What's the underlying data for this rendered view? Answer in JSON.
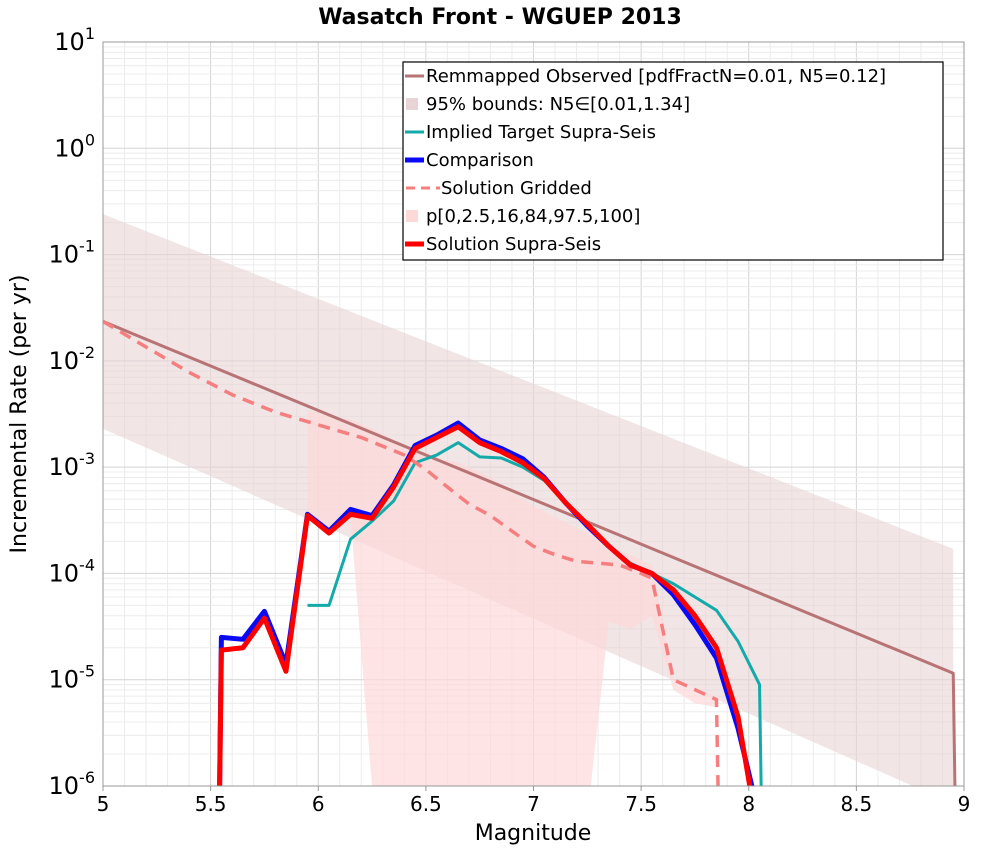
{
  "chart_data": {
    "type": "line",
    "title": "Wasatch Front - WGUEP 2013",
    "xlabel": "Magnitude",
    "ylabel": "Incremental Rate (per yr)",
    "xlim": [
      5,
      9
    ],
    "ylim": [
      1e-06,
      10
    ],
    "y_scale": "log",
    "grid": true,
    "legend_position": "top-right",
    "x_ticks": [
      "5",
      "5.5",
      "6",
      "6.5",
      "7",
      "7.5",
      "8",
      "8.5",
      "9"
    ],
    "y_ticks": [
      {
        "base": "10",
        "exp": "-6"
      },
      {
        "base": "10",
        "exp": "-5"
      },
      {
        "base": "10",
        "exp": "-4"
      },
      {
        "base": "10",
        "exp": "-3"
      },
      {
        "base": "10",
        "exp": "-2"
      },
      {
        "base": "10",
        "exp": "-1"
      },
      {
        "base": "10",
        "exp": "0"
      },
      {
        "base": "10",
        "exp": "1"
      }
    ],
    "colors": {
      "observed": "#b87474",
      "observed_band": "#e8d4d6",
      "target": "#13aaaa",
      "comparison": "#0a0af5",
      "gridded": "#f57f7f",
      "percentile_band": "#fdd8d8",
      "supra": "#ff0000"
    },
    "series": [
      {
        "name": "Remmapped Observed [pdfFractN=0.01, N5=0.12]",
        "style": "line",
        "x": [
          5.0,
          8.95,
          8.96
        ],
        "y": [
          0.0235,
          1.15e-05,
          5e-07
        ]
      },
      {
        "name": "95% bounds: N5∈[0.01,1.34]",
        "style": "band",
        "x": [
          5.0,
          8.95
        ],
        "lower": [
          0.0023,
          6.8e-07
        ],
        "upper": [
          0.24,
          0.00017
        ]
      },
      {
        "name": "Implied Target Supra-Seis",
        "style": "line",
        "x": [
          5.95,
          6.05,
          6.15,
          6.25,
          6.35,
          6.45,
          6.55,
          6.65,
          6.75,
          6.85,
          6.95,
          7.05,
          7.15,
          7.25,
          7.35,
          7.45,
          7.55,
          7.65,
          7.75,
          7.85,
          7.95,
          8.05,
          8.06
        ],
        "y": [
          5e-05,
          5e-05,
          0.00021,
          0.00031,
          0.00048,
          0.0011,
          0.0013,
          0.0017,
          0.00125,
          0.00122,
          0.001,
          0.00075,
          0.00045,
          0.00028,
          0.00018,
          0.000125,
          0.0001,
          8e-05,
          6e-05,
          4.5e-05,
          2.3e-05,
          9e-06,
          5e-07
        ]
      },
      {
        "name": "Comparison",
        "style": "line",
        "x": [
          5.54,
          5.55,
          5.65,
          5.75,
          5.85,
          5.95,
          6.05,
          6.15,
          6.25,
          6.35,
          6.45,
          6.55,
          6.65,
          6.75,
          6.85,
          6.95,
          7.05,
          7.15,
          7.25,
          7.35,
          7.45,
          7.55,
          7.65,
          7.75,
          7.85,
          7.95,
          8.05
        ],
        "y": [
          5e-07,
          2.5e-05,
          2.4e-05,
          4.4e-05,
          1.4e-05,
          0.00036,
          0.00025,
          0.0004,
          0.00035,
          0.00068,
          0.0016,
          0.002,
          0.0026,
          0.0018,
          0.0015,
          0.0012,
          0.0008,
          0.00046,
          0.00028,
          0.00018,
          0.00012,
          0.0001,
          6.3e-05,
          3.3e-05,
          1.6e-05,
          3.5e-06,
          5e-07
        ]
      },
      {
        "name": "Solution Gridded",
        "style": "dashed",
        "x": [
          5.0,
          5.2,
          5.4,
          5.6,
          5.8,
          6.0,
          6.2,
          6.4,
          6.5,
          6.6,
          6.7,
          6.8,
          6.9,
          7.0,
          7.1,
          7.2,
          7.3,
          7.4,
          7.5,
          7.55,
          7.65,
          7.85,
          7.86
        ],
        "y": [
          0.0235,
          0.0135,
          0.0078,
          0.0048,
          0.0033,
          0.0025,
          0.0019,
          0.0013,
          0.00095,
          0.00065,
          0.00045,
          0.00035,
          0.00025,
          0.00018,
          0.00015,
          0.00013,
          0.000125,
          0.00012,
          0.0001,
          9e-05,
          1e-05,
          6.5e-06,
          5e-07
        ]
      },
      {
        "name": "p[0,2.5,16,84,97.5,100]",
        "style": "band",
        "x": [
          5.95,
          6.05,
          6.15,
          6.25,
          6.35,
          6.45,
          6.55,
          6.65,
          6.75,
          6.85,
          6.95,
          7.05,
          7.15,
          7.25,
          7.35,
          7.45,
          7.55,
          7.65,
          7.75,
          7.85
        ],
        "lower": [
          0.0004,
          0.00025,
          0.00033,
          1e-06,
          5e-07,
          5e-07,
          5e-07,
          5e-07,
          5e-07,
          5e-07,
          5e-07,
          5e-07,
          5e-07,
          5e-07,
          3.5e-05,
          3e-05,
          4e-05,
          8e-06,
          6e-06,
          5.5e-06
        ],
        "upper": [
          0.0035,
          0.003,
          0.0028,
          0.0023,
          0.0018,
          0.0014,
          0.0012,
          0.0011,
          0.0009,
          0.0007,
          0.0005,
          0.00038,
          0.0003,
          0.00024,
          0.00018,
          0.00015,
          0.00012,
          1e-05,
          8e-06,
          7e-06
        ]
      },
      {
        "name": "Solution Supra-Seis",
        "style": "line",
        "x": [
          5.54,
          5.55,
          5.65,
          5.75,
          5.85,
          5.95,
          6.05,
          6.15,
          6.25,
          6.35,
          6.45,
          6.55,
          6.65,
          6.75,
          6.85,
          6.95,
          7.05,
          7.15,
          7.25,
          7.35,
          7.45,
          7.55,
          7.65,
          7.75,
          7.85,
          7.95,
          8.03
        ],
        "y": [
          5e-07,
          1.9e-05,
          2e-05,
          3.8e-05,
          1.2e-05,
          0.00035,
          0.00024,
          0.00036,
          0.00033,
          0.00065,
          0.0015,
          0.0019,
          0.0024,
          0.0017,
          0.0014,
          0.0011,
          0.00078,
          0.00046,
          0.00029,
          0.00018,
          0.00012,
          0.0001,
          7e-05,
          4e-05,
          2e-05,
          4.5e-06,
          5e-07
        ]
      }
    ]
  }
}
